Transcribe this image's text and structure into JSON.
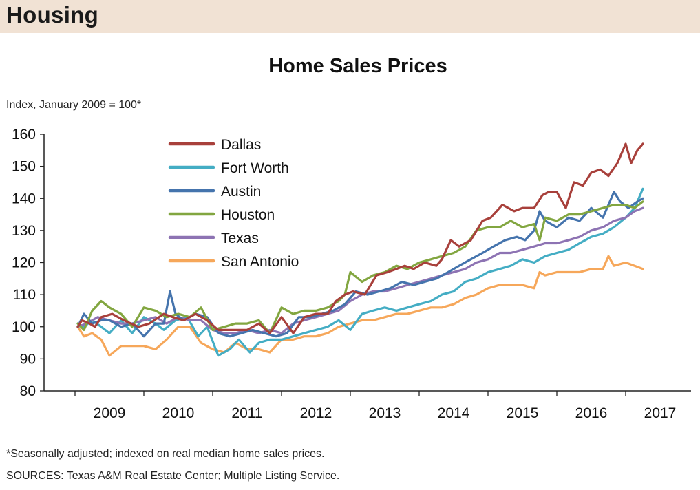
{
  "header": {
    "section": "Housing"
  },
  "footnotes": {
    "note": "*Seasonally adjusted; indexed on real median home sales prices.",
    "sources": "SOURCES: Texas A&M Real Estate Center; Multiple Listing Service."
  },
  "colors": {
    "header_band": "#f1e2d4",
    "Dallas": "#a8403b",
    "Fort Worth": "#44adc4",
    "Austin": "#4574ad",
    "Houston": "#82a640",
    "Texas": "#8d73b3",
    "San Antonio": "#f6a75a"
  },
  "chart_data": {
    "type": "line",
    "title": "Home Sales Prices",
    "ylabel": "Index, January 2009 = 100*",
    "xlabel": "",
    "ylim": [
      80,
      160
    ],
    "yticks": [
      80,
      90,
      100,
      110,
      120,
      130,
      140,
      150,
      160
    ],
    "xlim": [
      2008.3,
      2017.7
    ],
    "year_labels": [
      "2009",
      "2010",
      "2011",
      "2012",
      "2013",
      "2014",
      "2015",
      "2016",
      "2017"
    ],
    "year_label_positions": [
      2009.25,
      2010.25,
      2011.25,
      2012.25,
      2013.25,
      2014.25,
      2015.25,
      2016.25,
      2017.25
    ],
    "minor_ticks": [
      2008.75,
      2009.75,
      2010.75,
      2011.75,
      2012.75,
      2013.75,
      2014.75,
      2015.75,
      2016.75,
      2017.75
    ],
    "grid": false,
    "legend_position": "top-left",
    "series": [
      {
        "name": "Dallas",
        "x": [
          2008.79,
          2008.85,
          2008.96,
          2009.04,
          2009.13,
          2009.29,
          2009.46,
          2009.67,
          2009.83,
          2010.04,
          2010.17,
          2010.33,
          2010.5,
          2010.67,
          2010.83,
          2011.0,
          2011.25,
          2011.42,
          2011.58,
          2011.75,
          2011.92,
          2012.08,
          2012.25,
          2012.42,
          2012.54,
          2012.67,
          2012.79,
          2012.96,
          2013.13,
          2013.29,
          2013.42,
          2013.54,
          2013.67,
          2013.83,
          2014.0,
          2014.08,
          2014.21,
          2014.33,
          2014.5,
          2014.67,
          2014.79,
          2014.96,
          2015.13,
          2015.25,
          2015.42,
          2015.54,
          2015.63,
          2015.75,
          2015.88,
          2016.0,
          2016.13,
          2016.25,
          2016.38,
          2016.5,
          2016.63,
          2016.75,
          2016.83,
          2016.92,
          2017.0
        ],
        "values": [
          100,
          102,
          101,
          100,
          103,
          104,
          102,
          100,
          101,
          104,
          103,
          102,
          104,
          102,
          99,
          99,
          99,
          101,
          98,
          103,
          98,
          103,
          104,
          104,
          108,
          110,
          111,
          110,
          116,
          117,
          118,
          119,
          118,
          120,
          119,
          121,
          127,
          125,
          127,
          133,
          134,
          138,
          136,
          137,
          137,
          141,
          142,
          142,
          137,
          145,
          144,
          148,
          149,
          147,
          151,
          157,
          151,
          155,
          157
        ]
      },
      {
        "name": "Fort Worth",
        "x": [
          2008.79,
          2008.88,
          2009.0,
          2009.13,
          2009.25,
          2009.42,
          2009.58,
          2009.75,
          2009.92,
          2010.04,
          2010.21,
          2010.38,
          2010.54,
          2010.67,
          2010.83,
          2011.0,
          2011.13,
          2011.29,
          2011.42,
          2011.58,
          2011.75,
          2011.92,
          2012.08,
          2012.25,
          2012.42,
          2012.58,
          2012.75,
          2012.92,
          2013.08,
          2013.25,
          2013.42,
          2013.58,
          2013.75,
          2013.92,
          2014.08,
          2014.25,
          2014.42,
          2014.58,
          2014.75,
          2014.92,
          2015.08,
          2015.25,
          2015.42,
          2015.58,
          2015.75,
          2015.92,
          2016.08,
          2016.25,
          2016.42,
          2016.58,
          2016.75,
          2016.88,
          2017.0
        ],
        "values": [
          101,
          100,
          102,
          100,
          98,
          102,
          98,
          103,
          101,
          99,
          102,
          103,
          97,
          100,
          91,
          93,
          96,
          92,
          95,
          96,
          96,
          97,
          98,
          99,
          100,
          102,
          99,
          104,
          105,
          106,
          105,
          106,
          107,
          108,
          110,
          111,
          114,
          115,
          117,
          118,
          119,
          121,
          120,
          122,
          123,
          124,
          126,
          128,
          129,
          131,
          134,
          137,
          143
        ]
      },
      {
        "name": "Austin",
        "x": [
          2008.79,
          2008.88,
          2009.0,
          2009.13,
          2009.25,
          2009.42,
          2009.58,
          2009.75,
          2009.92,
          2010.04,
          2010.13,
          2010.21,
          2010.33,
          2010.5,
          2010.67,
          2010.83,
          2011.0,
          2011.17,
          2011.33,
          2011.5,
          2011.67,
          2011.83,
          2012.0,
          2012.17,
          2012.33,
          2012.5,
          2012.67,
          2012.83,
          2013.0,
          2013.17,
          2013.33,
          2013.5,
          2013.67,
          2013.83,
          2014.0,
          2014.17,
          2014.33,
          2014.5,
          2014.67,
          2014.83,
          2015.0,
          2015.17,
          2015.29,
          2015.42,
          2015.5,
          2015.58,
          2015.75,
          2015.92,
          2016.08,
          2016.25,
          2016.42,
          2016.58,
          2016.67,
          2016.79,
          2016.92,
          2017.0
        ],
        "values": [
          100,
          104,
          101,
          102,
          102,
          100,
          101,
          97,
          101,
          101,
          111,
          104,
          102,
          104,
          103,
          98,
          97,
          98,
          99,
          98,
          97,
          98,
          103,
          103,
          104,
          105,
          107,
          111,
          110,
          111,
          112,
          114,
          113,
          114,
          115,
          117,
          119,
          121,
          123,
          125,
          127,
          128,
          127,
          130,
          136,
          133,
          131,
          134,
          133,
          137,
          134,
          142,
          139,
          137,
          139,
          140
        ]
      },
      {
        "name": "Houston",
        "x": [
          2008.79,
          2008.88,
          2009.0,
          2009.13,
          2009.25,
          2009.42,
          2009.58,
          2009.75,
          2009.92,
          2010.08,
          2010.25,
          2010.42,
          2010.58,
          2010.75,
          2010.92,
          2011.08,
          2011.25,
          2011.42,
          2011.58,
          2011.75,
          2011.92,
          2012.08,
          2012.25,
          2012.42,
          2012.58,
          2012.67,
          2012.75,
          2012.92,
          2013.08,
          2013.25,
          2013.42,
          2013.58,
          2013.75,
          2013.92,
          2014.08,
          2014.25,
          2014.42,
          2014.58,
          2014.75,
          2014.92,
          2015.08,
          2015.25,
          2015.42,
          2015.5,
          2015.58,
          2015.75,
          2015.92,
          2016.08,
          2016.25,
          2016.42,
          2016.58,
          2016.75,
          2016.88,
          2017.0
        ],
        "values": [
          101,
          99,
          105,
          108,
          106,
          104,
          100,
          106,
          105,
          103,
          104,
          103,
          106,
          99,
          100,
          101,
          101,
          102,
          98,
          106,
          104,
          105,
          105,
          106,
          108,
          110,
          117,
          114,
          116,
          117,
          119,
          118,
          120,
          121,
          122,
          123,
          125,
          130,
          131,
          131,
          133,
          131,
          132,
          127,
          134,
          133,
          135,
          135,
          136,
          137,
          138,
          138,
          137,
          139
        ]
      },
      {
        "name": "Texas",
        "x": [
          2008.79,
          2008.92,
          2009.08,
          2009.25,
          2009.42,
          2009.58,
          2009.75,
          2009.92,
          2010.08,
          2010.25,
          2010.42,
          2010.58,
          2010.75,
          2010.92,
          2011.08,
          2011.25,
          2011.42,
          2011.58,
          2011.75,
          2011.92,
          2012.08,
          2012.25,
          2012.42,
          2012.58,
          2012.75,
          2012.92,
          2013.08,
          2013.25,
          2013.42,
          2013.58,
          2013.75,
          2013.92,
          2014.08,
          2014.25,
          2014.42,
          2014.58,
          2014.75,
          2014.92,
          2015.08,
          2015.25,
          2015.42,
          2015.58,
          2015.75,
          2015.92,
          2016.08,
          2016.25,
          2016.42,
          2016.58,
          2016.75,
          2016.88,
          2017.0
        ],
        "values": [
          100,
          101,
          103,
          102,
          101,
          101,
          102,
          103,
          101,
          103,
          102,
          102,
          99,
          98,
          98,
          99,
          98,
          99,
          98,
          101,
          102,
          103,
          104,
          105,
          108,
          110,
          111,
          111,
          112,
          113,
          114,
          115,
          116,
          117,
          118,
          120,
          121,
          123,
          123,
          124,
          125,
          126,
          126,
          127,
          128,
          130,
          131,
          133,
          134,
          136,
          137
        ]
      },
      {
        "name": "San Antonio",
        "x": [
          2008.79,
          2008.88,
          2009.0,
          2009.13,
          2009.25,
          2009.42,
          2009.58,
          2009.75,
          2009.92,
          2010.08,
          2010.25,
          2010.42,
          2010.58,
          2010.75,
          2010.92,
          2011.08,
          2011.25,
          2011.42,
          2011.58,
          2011.75,
          2011.92,
          2012.08,
          2012.25,
          2012.42,
          2012.58,
          2012.75,
          2012.92,
          2013.08,
          2013.25,
          2013.42,
          2013.58,
          2013.75,
          2013.92,
          2014.08,
          2014.25,
          2014.42,
          2014.58,
          2014.75,
          2014.92,
          2015.08,
          2015.25,
          2015.42,
          2015.5,
          2015.58,
          2015.75,
          2015.92,
          2016.08,
          2016.25,
          2016.42,
          2016.5,
          2016.58,
          2016.75,
          2016.88,
          2017.0
        ],
        "values": [
          100,
          97,
          98,
          96,
          91,
          94,
          94,
          94,
          93,
          96,
          100,
          100,
          95,
          93,
          92,
          95,
          93,
          93,
          92,
          96,
          96,
          97,
          97,
          98,
          100,
          101,
          102,
          102,
          103,
          104,
          104,
          105,
          106,
          106,
          107,
          109,
          110,
          112,
          113,
          113,
          113,
          112,
          117,
          116,
          117,
          117,
          117,
          118,
          118,
          122,
          119,
          120,
          119,
          118
        ]
      }
    ]
  }
}
